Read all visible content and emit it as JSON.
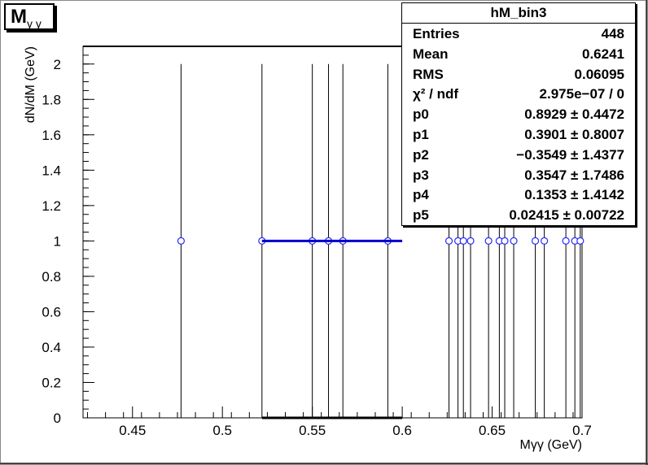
{
  "title_box": {
    "main": "M",
    "sub": "γ γ"
  },
  "stats": {
    "title": "hM_bin3",
    "rows": [
      {
        "key": "Entries",
        "value": "448"
      },
      {
        "key": "Mean",
        "value": "0.6241"
      },
      {
        "key": "RMS",
        "value": "0.06095"
      },
      {
        "key": "χ² / ndf",
        "value": "2.975e−07 / 0"
      },
      {
        "key": "p0",
        "value": "0.8929 ± 0.4472"
      },
      {
        "key": "p1",
        "value": "0.3901 ± 0.8007"
      },
      {
        "key": "p2",
        "value": "−0.3549 ± 1.4377"
      },
      {
        "key": "p3",
        "value": "0.3547 ± 1.7486"
      },
      {
        "key": "p4",
        "value": "0.1353 ± 1.4142"
      },
      {
        "key": "p5",
        "value": "0.02415 ± 0.00722"
      }
    ]
  },
  "chart_data": {
    "type": "scatter",
    "title": "",
    "xlabel": "Mγγ (GeV)",
    "ylabel": "dN/dM (GeV)",
    "xlim": [
      0.4225,
      0.7
    ],
    "ylim": [
      0,
      2.1
    ],
    "x_ticks": [
      "0.45",
      "0.5",
      "0.55",
      "0.6",
      "0.65",
      "0.7"
    ],
    "y_ticks": [
      "0",
      "0.2",
      "0.4",
      "0.6",
      "0.8",
      "1",
      "1.2",
      "1.4",
      "1.6",
      "1.8",
      "2"
    ],
    "series": [
      {
        "marker": "open-circle",
        "error_bars": [
          0,
          2
        ],
        "x": [
          0.477,
          0.522,
          0.55,
          0.559,
          0.567,
          0.592,
          0.626,
          0.631,
          0.634,
          0.638,
          0.648,
          0.654,
          0.657,
          0.662,
          0.674,
          0.679,
          0.691,
          0.696,
          0.699
        ],
        "y": [
          1,
          1,
          1,
          1,
          1,
          1,
          1,
          1,
          1,
          1,
          1,
          1,
          1,
          1,
          1,
          1,
          1,
          1,
          1
        ]
      }
    ],
    "fit_line": {
      "x": [
        0.522,
        0.6
      ],
      "y": [
        1,
        1
      ]
    },
    "grid": false,
    "legend": "top-right",
    "colors": {
      "marker": "#2929ff",
      "fit": "#0000cc",
      "frame": "#000000",
      "background": "#ffffff"
    }
  }
}
